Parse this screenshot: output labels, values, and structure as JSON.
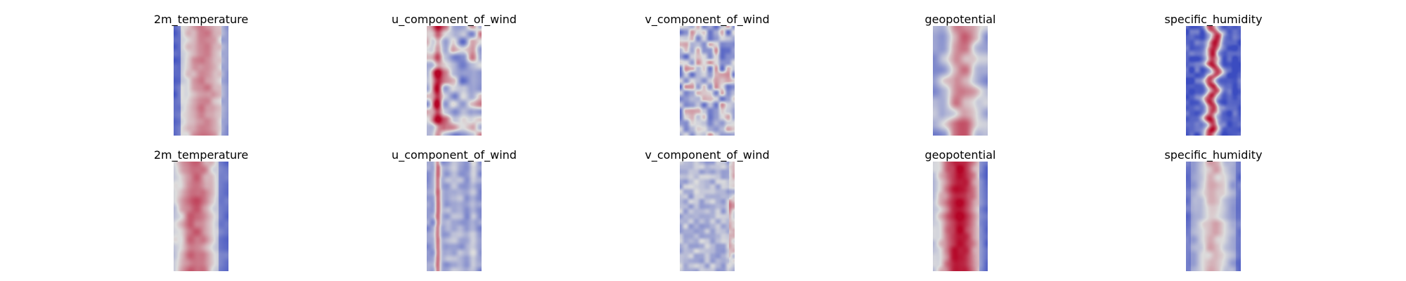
{
  "chart_data": [
    {
      "type": "heatmap",
      "title": "2m_temperature",
      "colormap": "coolwarm",
      "pattern": "warm-center"
    },
    {
      "type": "heatmap",
      "title": "u_component_of_wind",
      "colormap": "coolwarm",
      "pattern": "mixed-streaks"
    },
    {
      "type": "heatmap",
      "title": "v_component_of_wind",
      "colormap": "coolwarm",
      "pattern": "noise"
    },
    {
      "type": "heatmap",
      "title": "geopotential",
      "colormap": "coolwarm",
      "pattern": "warm-center-blobs"
    },
    {
      "type": "heatmap",
      "title": "specific_humidity",
      "colormap": "coolwarm",
      "pattern": "narrow-hot-core"
    },
    {
      "type": "heatmap",
      "title": "2m_temperature",
      "colormap": "coolwarm",
      "pattern": "warm-left-center"
    },
    {
      "type": "heatmap",
      "title": "u_component_of_wind",
      "colormap": "coolwarm",
      "pattern": "cold-stripes"
    },
    {
      "type": "heatmap",
      "title": "v_component_of_wind",
      "colormap": "coolwarm",
      "pattern": "pale-noise-warm-right"
    },
    {
      "type": "heatmap",
      "title": "geopotential",
      "colormap": "coolwarm",
      "pattern": "hot-center"
    },
    {
      "type": "heatmap",
      "title": "specific_humidity",
      "colormap": "coolwarm",
      "pattern": "soft-center"
    }
  ],
  "colors": {
    "cold": "#3b4cc0",
    "neutral": "#dddddd",
    "warm": "#b40426"
  }
}
